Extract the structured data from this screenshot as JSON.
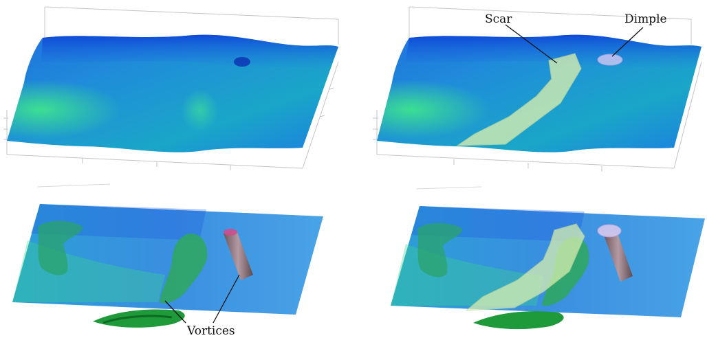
{
  "labels": {
    "scar": "Scar",
    "dimple": "Dimple",
    "vortices": "Vortices"
  },
  "colors": {
    "surface_deep_blue": "#0a3fd6",
    "surface_blue": "#1f6fe0",
    "surface_teal": "#22b5b0",
    "surface_green": "#38e08a",
    "scar_fill": "#d8efb0",
    "dimple_fill": "#c9c6f2",
    "vortex_green": "#1e9a3a",
    "vortex_tube": "#8a6f78",
    "axis_line": "#b0b0b0"
  },
  "panels": [
    {
      "name": "surface-plain"
    },
    {
      "name": "surface-annotated"
    },
    {
      "name": "vortices-plain"
    },
    {
      "name": "vortices-annotated"
    }
  ]
}
